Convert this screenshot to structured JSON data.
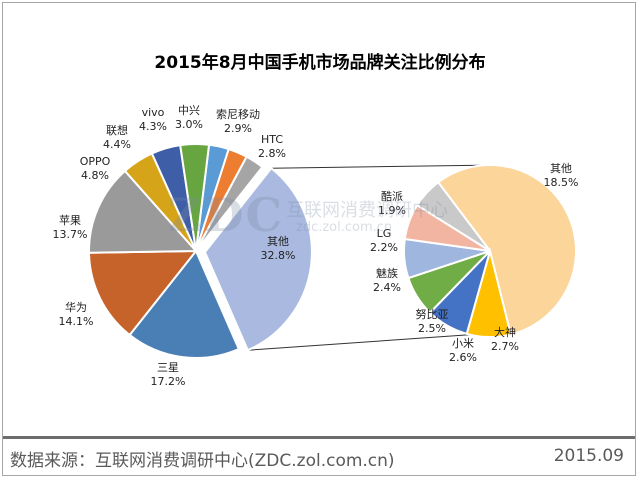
{
  "chart_data": {
    "type": "pie",
    "title": "2015年8月中国手机市场品牌关注比例分布",
    "main_pie": [
      {
        "name": "中兴",
        "value_label": "3.0%",
        "value": 3.0,
        "color": "#5b9bd5"
      },
      {
        "name": "索尼移动",
        "value_label": "2.9%",
        "value": 2.9,
        "color": "#ed7d31"
      },
      {
        "name": "HTC",
        "value_label": "2.8%",
        "value": 2.8,
        "color": "#a5a5a5"
      },
      {
        "name": "其他",
        "value_label": "32.8%",
        "value": 32.8,
        "color": "#a9b9e0"
      },
      {
        "name": "三星",
        "value_label": "17.2%",
        "value": 17.2,
        "color": "#4a7fb5"
      },
      {
        "name": "华为",
        "value_label": "14.1%",
        "value": 14.1,
        "color": "#c5632a"
      },
      {
        "name": "苹果",
        "value_label": "13.7%",
        "value": 13.7,
        "color": "#9a9a9a"
      },
      {
        "name": "OPPO",
        "value_label": "4.8%",
        "value": 4.8,
        "color": "#d6a418"
      },
      {
        "name": "联想",
        "value_label": "4.4%",
        "value": 4.4,
        "color": "#3f5ea8"
      },
      {
        "name": "vivo",
        "value_label": "4.3%",
        "value": 4.3,
        "color": "#67a540"
      }
    ],
    "secondary_pie": [
      {
        "name": "其他",
        "value_label": "18.5%",
        "value": 18.5,
        "color": "#fcd59a"
      },
      {
        "name": "大神",
        "value_label": "2.7%",
        "value": 2.7,
        "color": "#ffc000"
      },
      {
        "name": "小米",
        "value_label": "2.6%",
        "value": 2.6,
        "color": "#4472c4"
      },
      {
        "name": "努比亚",
        "value_label": "2.5%",
        "value": 2.5,
        "color": "#70ad47"
      },
      {
        "name": "魅族",
        "value_label": "2.4%",
        "value": 2.4,
        "color": "#9fb6df"
      },
      {
        "name": "LG",
        "value_label": "2.2%",
        "value": 2.2,
        "color": "#f2b5a2"
      },
      {
        "name": "酷派",
        "value_label": "1.9%",
        "value": 1.9,
        "color": "#c9c9c9"
      }
    ]
  },
  "watermark": {
    "logo": "ZDC",
    "cn": "互联网消费调研中心",
    "url": "zdc.zol.com.cn"
  },
  "footer": {
    "source": "数据来源：互联网消费调研中心(ZDC.zol.com.cn)",
    "date": "2015.09"
  }
}
